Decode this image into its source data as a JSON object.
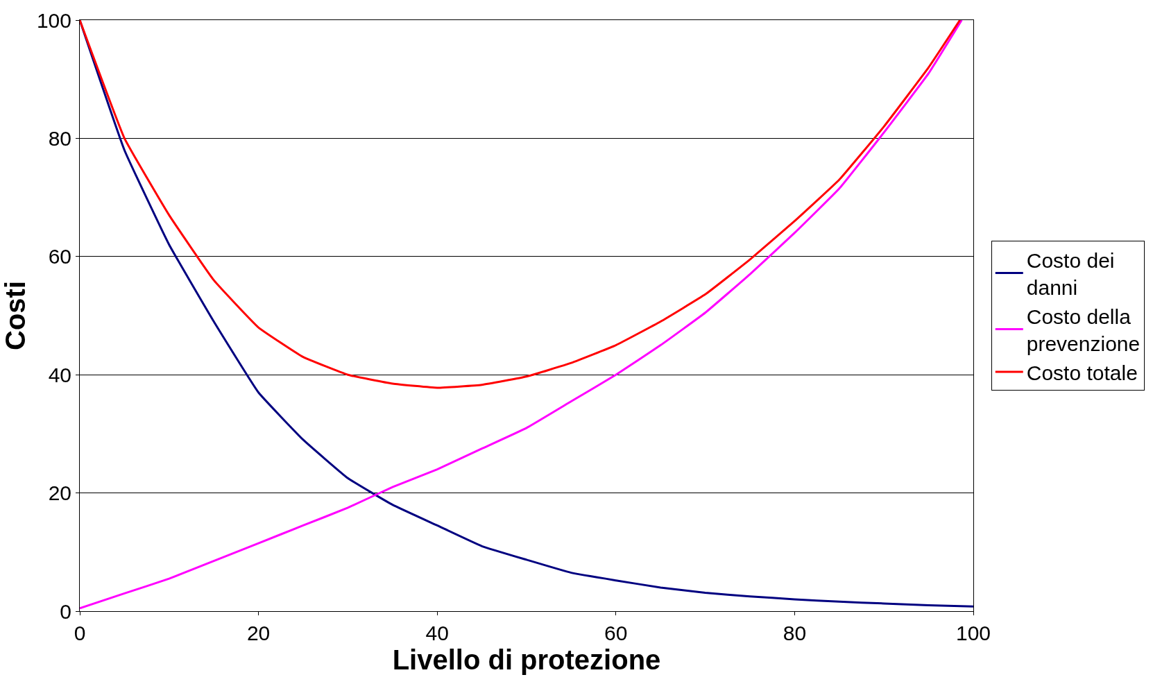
{
  "chart_data": {
    "type": "line",
    "xlabel": "Livello di protezione",
    "ylabel": "Costi",
    "xlim": [
      0,
      100
    ],
    "xticks": [
      0,
      20,
      40,
      60,
      80,
      100
    ],
    "ylim": [
      0,
      100
    ],
    "yticks": [
      0,
      20,
      40,
      60,
      80,
      100
    ],
    "grid": "y",
    "legend": "right",
    "marker": "none",
    "line_style": "solid",
    "series": [
      {
        "name": "Costo dei danni",
        "color": "#000080",
        "x": [
          0,
          5,
          10,
          15,
          20,
          25,
          30,
          35,
          40,
          45,
          50,
          55,
          60,
          65,
          70,
          75,
          80,
          85,
          90,
          95,
          100
        ],
        "values": [
          100,
          78,
          62,
          49,
          37,
          29,
          22.5,
          18,
          14.5,
          11,
          8.7,
          6.5,
          5.2,
          4,
          3.1,
          2.5,
          2,
          1.6,
          1.3,
          1,
          0.8
        ]
      },
      {
        "name": "Costo della prevenzione",
        "color": "#ff00ff",
        "x": [
          0,
          5,
          10,
          15,
          20,
          25,
          30,
          35,
          40,
          45,
          50,
          55,
          60,
          65,
          70,
          75,
          80,
          85,
          90,
          95,
          98.7
        ],
        "values": [
          0.5,
          3,
          5.5,
          8.5,
          11.5,
          14.5,
          17.5,
          21,
          24,
          27.5,
          31,
          35.5,
          40,
          45,
          50.5,
          57,
          64,
          71.5,
          81,
          91,
          100
        ]
      },
      {
        "name": "Costo totale",
        "color": "#ff0000",
        "x": [
          0,
          5,
          10,
          15,
          20,
          25,
          30,
          35,
          40,
          45,
          50,
          55,
          60,
          65,
          70,
          75,
          80,
          85,
          90,
          95,
          98.5
        ],
        "values": [
          100,
          80,
          67,
          56,
          48,
          43,
          40,
          38.5,
          37.8,
          38.3,
          39.7,
          42,
          45,
          49,
          53.6,
          59.5,
          66,
          73,
          82,
          92,
          100
        ]
      }
    ]
  }
}
